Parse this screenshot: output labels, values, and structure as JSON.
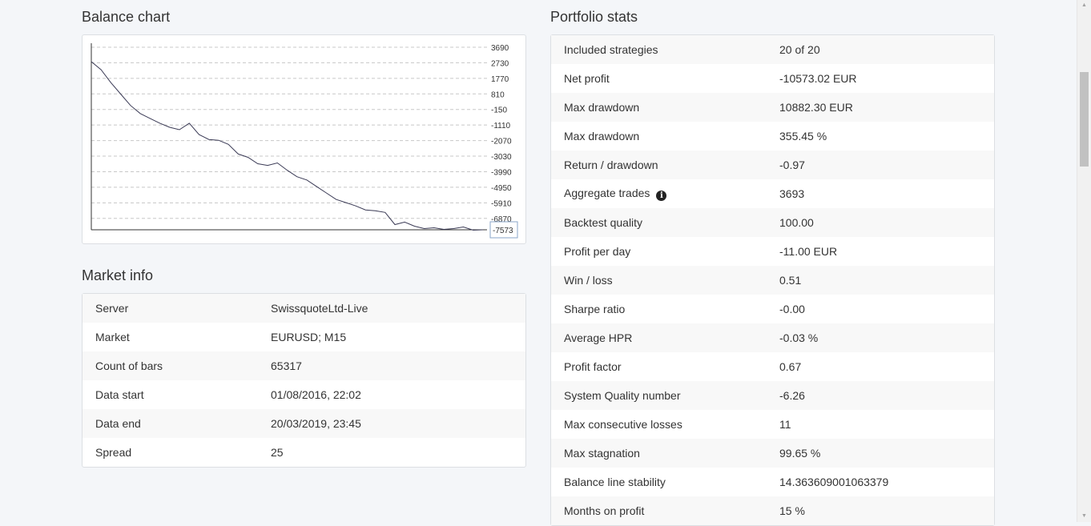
{
  "balance_chart": {
    "heading": "Balance chart",
    "chart_data": {
      "type": "line",
      "title": "",
      "y_ticks": [
        "3690",
        "2730",
        "1770",
        "810",
        "-150",
        "-1110",
        "-2070",
        "-3030",
        "-3990",
        "-4950",
        "-5910",
        "-6870"
      ],
      "y_tick_values": [
        3690,
        2730,
        1770,
        810,
        -150,
        -1110,
        -2070,
        -3030,
        -3990,
        -4950,
        -5910,
        -6870
      ],
      "current_label": "-7573",
      "current_value": -7573,
      "ylim": [
        -7573,
        3690
      ],
      "grid": true,
      "series": [
        {
          "x": [
            0,
            1,
            2,
            3,
            4,
            5,
            6,
            7,
            8,
            9,
            10,
            11,
            12,
            13,
            14,
            15,
            16,
            17,
            18,
            19,
            20,
            21,
            22,
            23,
            24,
            25,
            26,
            27,
            28,
            29,
            30,
            31,
            32,
            33,
            34,
            35,
            36,
            37,
            38,
            39,
            40
          ],
          "values": [
            2800,
            2300,
            1500,
            800,
            100,
            -400,
            -700,
            -1000,
            -1250,
            -1400,
            -1000,
            -1700,
            -2000,
            -2050,
            -2300,
            -2900,
            -3100,
            -3500,
            -3600,
            -3450,
            -3900,
            -4300,
            -4500,
            -4900,
            -5300,
            -5700,
            -5900,
            -6100,
            -6350,
            -6400,
            -6500,
            -7250,
            -7100,
            -7350,
            -7500,
            -7450,
            -7550,
            -7500,
            -7400,
            -7600,
            -7573
          ]
        }
      ]
    }
  },
  "market_info": {
    "heading": "Market info",
    "rows": [
      {
        "label": "Server",
        "value": "SwissquoteLtd-Live"
      },
      {
        "label": "Market",
        "value": "EURUSD; M15"
      },
      {
        "label": "Count of bars",
        "value": "65317"
      },
      {
        "label": "Data start",
        "value": "01/08/2016, 22:02"
      },
      {
        "label": "Data end",
        "value": "20/03/2019, 23:45"
      },
      {
        "label": "Spread",
        "value": "25"
      }
    ]
  },
  "portfolio_stats": {
    "heading": "Portfolio stats",
    "rows": [
      {
        "label": "Included strategies",
        "value": "20 of 20"
      },
      {
        "label": "Net profit",
        "value": "-10573.02 EUR"
      },
      {
        "label": "Max drawdown",
        "value": "10882.30 EUR"
      },
      {
        "label": "Max drawdown",
        "value": "355.45 %"
      },
      {
        "label": "Return / drawdown",
        "value": "-0.97"
      },
      {
        "label": "Aggregate trades",
        "value": "3693",
        "info_icon": "info-circle-icon"
      },
      {
        "label": "Backtest quality",
        "value": "100.00"
      },
      {
        "label": "Profit per day",
        "value": "-11.00 EUR"
      },
      {
        "label": "Win / loss",
        "value": "0.51"
      },
      {
        "label": "Sharpe ratio",
        "value": "-0.00"
      },
      {
        "label": "Average HPR",
        "value": "-0.03 %"
      },
      {
        "label": "Profit factor",
        "value": "0.67"
      },
      {
        "label": "System Quality number",
        "value": "-6.26"
      },
      {
        "label": "Max consecutive losses",
        "value": "11"
      },
      {
        "label": "Max stagnation",
        "value": "99.65 %"
      },
      {
        "label": "Balance line stability",
        "value": "14.363609001063379"
      },
      {
        "label": "Months on profit",
        "value": "15 %"
      }
    ]
  }
}
